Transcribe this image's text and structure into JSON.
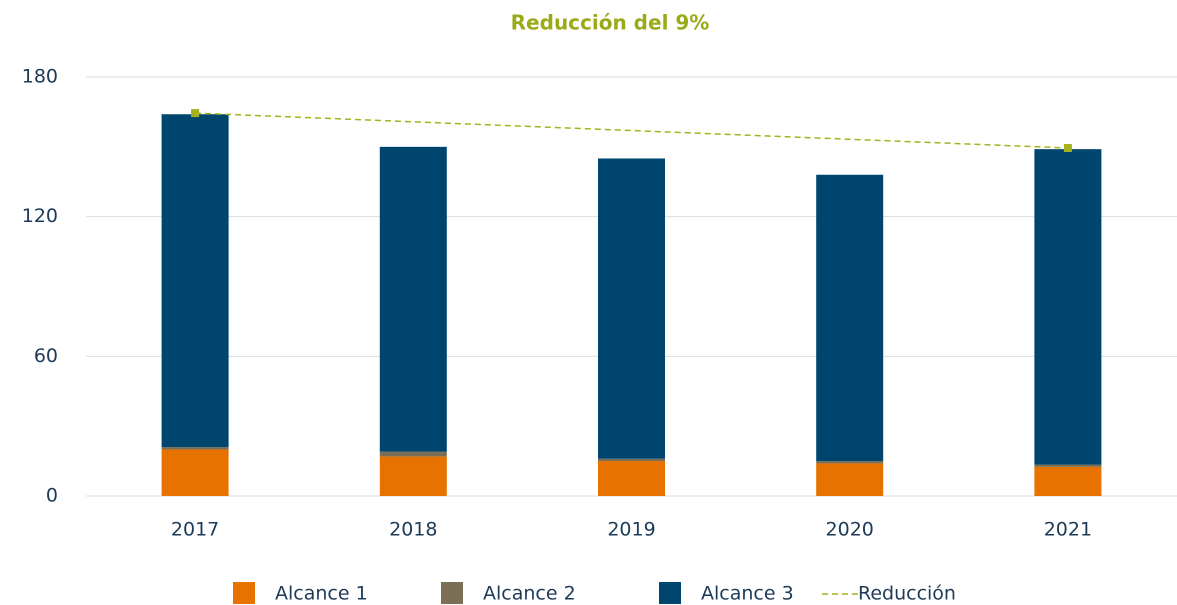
{
  "chart_data": {
    "type": "stacked_bar",
    "title": "Reducción del 9%",
    "title_color": "#9aab1a",
    "categories": [
      "2017",
      "2018",
      "2019",
      "2020",
      "2021"
    ],
    "series": [
      {
        "name": "Alcance 1",
        "color": "#e87200",
        "values": [
          20,
          17,
          15,
          14,
          12.5
        ]
      },
      {
        "name": "Alcance 2",
        "color": "#7a6f55",
        "values": [
          1,
          2,
          1,
          1,
          1
        ]
      },
      {
        "name": "Alcance 3",
        "color": "#00456e",
        "values": [
          143,
          131,
          129,
          123,
          135.5
        ]
      }
    ],
    "line": {
      "name": "Reducción",
      "color": "#a5b21e",
      "x": [
        "2017",
        "2021"
      ],
      "values": [
        164.5,
        149.5
      ]
    },
    "ylim": [
      0,
      180
    ],
    "yticks": [
      0,
      60,
      120,
      180
    ],
    "grid": true
  }
}
